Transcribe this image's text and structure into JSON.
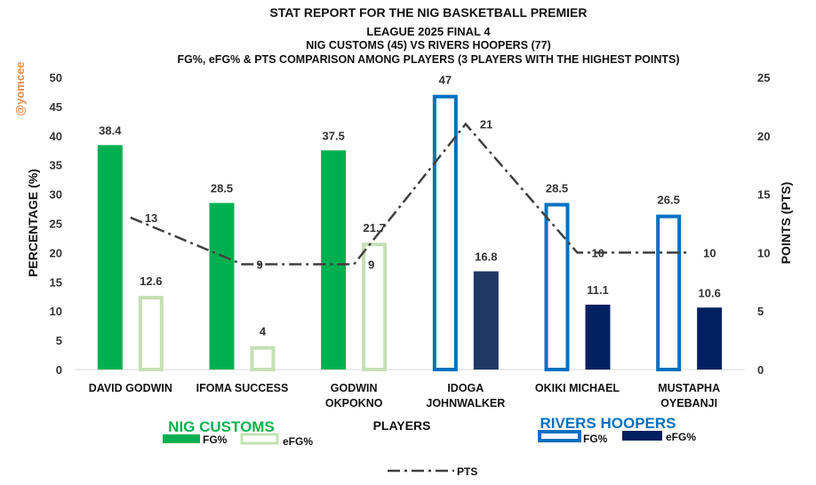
{
  "watermark": "@yomcee",
  "chart_data": {
    "type": "bar",
    "title_lines": [
      "STAT REPORT FOR THE NIG BASKETBALL PREMIER",
      "LEAGUE 2025 FINAL 4",
      "NIG CUSTOMS (45) VS RIVERS HOOPERS (77)",
      "FG%, eFG% & PTS COMPARISON AMONG PLAYERS (3 PLAYERS WITH THE HIGHEST POINTS)"
    ],
    "xlabel": "PLAYERS",
    "ylabel": "PERCENTAGE (%)",
    "y2label": "POINTS (PTS)",
    "ylim": [
      0,
      50
    ],
    "y2lim": [
      0,
      25
    ],
    "yticks": [
      0,
      5,
      10,
      15,
      20,
      25,
      30,
      35,
      40,
      45,
      50
    ],
    "y2ticks": [
      0,
      5,
      10,
      15,
      20,
      25
    ],
    "categories": [
      [
        "DAVID GODWIN"
      ],
      [
        "IFOMA SUCCESS"
      ],
      [
        "GODWIN",
        "OKPOKNO"
      ],
      [
        "IDOGA",
        "JOHNWALKER"
      ],
      [
        "OKIKI MICHAEL"
      ],
      [
        "MUSTAPHA",
        "OYEBANJI"
      ]
    ],
    "teams": [
      {
        "name": "NIG CUSTOMS",
        "color": "#00b050",
        "fg_color": "#00b050",
        "efg_color": "#c5e0b4",
        "fg_style": "solid",
        "efg_style": "outline"
      },
      {
        "name": "RIVERS HOOPERS",
        "color": "#0070c0",
        "fg_color": "#0070c0",
        "efg_color": "#002060",
        "fg_style": "outline",
        "efg_style": "solid"
      }
    ],
    "team_of_player": [
      0,
      0,
      0,
      1,
      1,
      1
    ],
    "series": [
      {
        "name": "FG%",
        "axis": "left",
        "values": [
          38.4,
          28.5,
          37.5,
          47,
          28.5,
          26.5
        ]
      },
      {
        "name": "eFG%",
        "axis": "left",
        "values": [
          12.6,
          4,
          21.7,
          16.8,
          11.1,
          10.6
        ]
      },
      {
        "name": "PTS",
        "axis": "right",
        "type": "line",
        "style": "dash-dot",
        "color": "#404040",
        "values": [
          13,
          9,
          9,
          21,
          10,
          10
        ]
      }
    ],
    "efg_colors_override": [
      "#c5e0b4",
      "#c5e0b4",
      "#c5e0b4",
      "#1f3864",
      "#002060",
      "#002060"
    ],
    "legend": {
      "customs_label": "NIG CUSTOMS",
      "hoopers_label": "RIVERS HOOPERS",
      "fg": "FG%",
      "efg": "eFG%",
      "pts": "PTS"
    },
    "grid": false
  }
}
